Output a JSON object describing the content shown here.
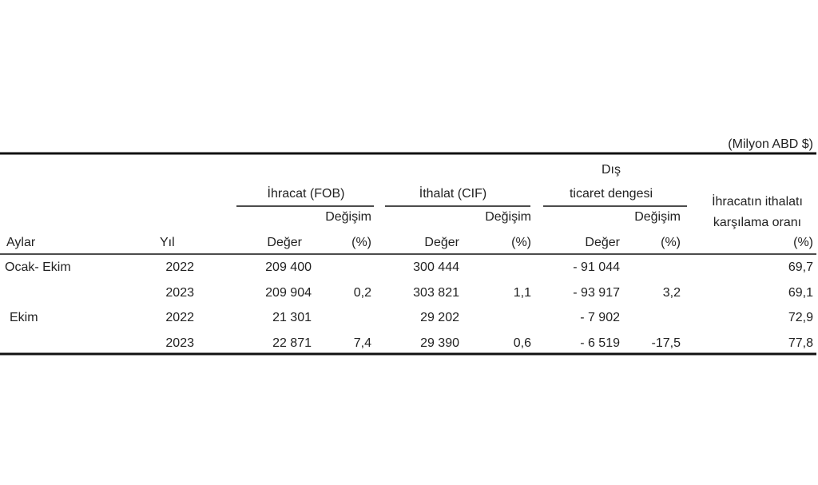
{
  "unit_note": "(Milyon ABD $)",
  "table": {
    "group_headers": [
      {
        "lines": [
          "İhracat (FOB)"
        ]
      },
      {
        "lines": [
          "İthalat (CIF)"
        ]
      },
      {
        "lines": [
          "Dış",
          "ticaret dengesi"
        ]
      },
      {
        "lines": [
          "İhracatın ithalatı",
          "karşılama oranı"
        ]
      }
    ],
    "change_headers": [
      "Değişim",
      "Değişim",
      "Değişim"
    ],
    "headers": [
      "Aylar",
      "Yıl",
      "Değer",
      "(%)",
      "Değer",
      "(%)",
      "Değer",
      "(%)",
      "(%)"
    ],
    "rows": [
      [
        "Ocak- Ekim",
        "2022",
        "209 400",
        null,
        "300 444",
        null,
        "- 91 044",
        null,
        "69,7"
      ],
      [
        null,
        "2023",
        "209 904",
        "0,2",
        "303 821",
        "1,1",
        "- 93 917",
        "3,2",
        "69,1"
      ],
      [
        "Ekim",
        "2022",
        "21 301",
        null,
        "29 202",
        null,
        "- 7 902",
        null,
        "72,9"
      ],
      [
        null,
        "2023",
        "22 871",
        "7,4",
        "29 390",
        "0,6",
        "- 6 519",
        "-17,5",
        "77,8"
      ]
    ]
  }
}
